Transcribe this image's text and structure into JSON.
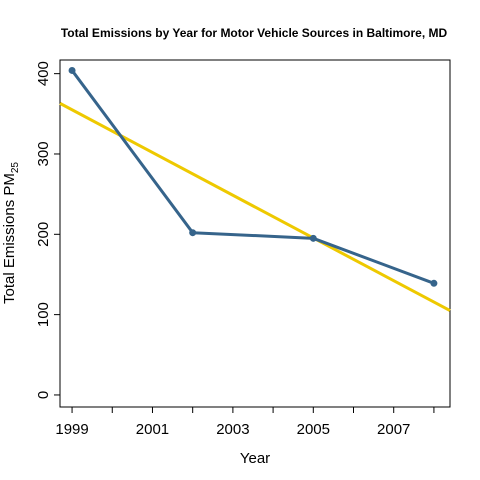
{
  "chart_data": {
    "type": "line",
    "title": "Total Emissions by Year for Motor Vehicle Sources in Baltimore, MD",
    "xlabel": "Year",
    "ylabel": "Total Emissions PM",
    "ylabel_subscript": "25",
    "x_ticks": [
      1999,
      2001,
      2003,
      2005,
      2007
    ],
    "x_minor_ticks": [
      2000,
      2002,
      2004,
      2006,
      2008
    ],
    "y_ticks": [
      0,
      100,
      200,
      300,
      400
    ],
    "xlim": [
      1998.7,
      2008.4
    ],
    "ylim": [
      -15,
      417
    ],
    "grid": false,
    "series": [
      {
        "x": [
          1999,
          2002,
          2005,
          2008
        ],
        "values": [
          404,
          202,
          195,
          139
        ],
        "color": "#36648b",
        "markers": true
      }
    ],
    "trend_line": {
      "x": [
        1998.7,
        2008.4
      ],
      "values": [
        363,
        105
      ],
      "color": "#eec900"
    }
  }
}
